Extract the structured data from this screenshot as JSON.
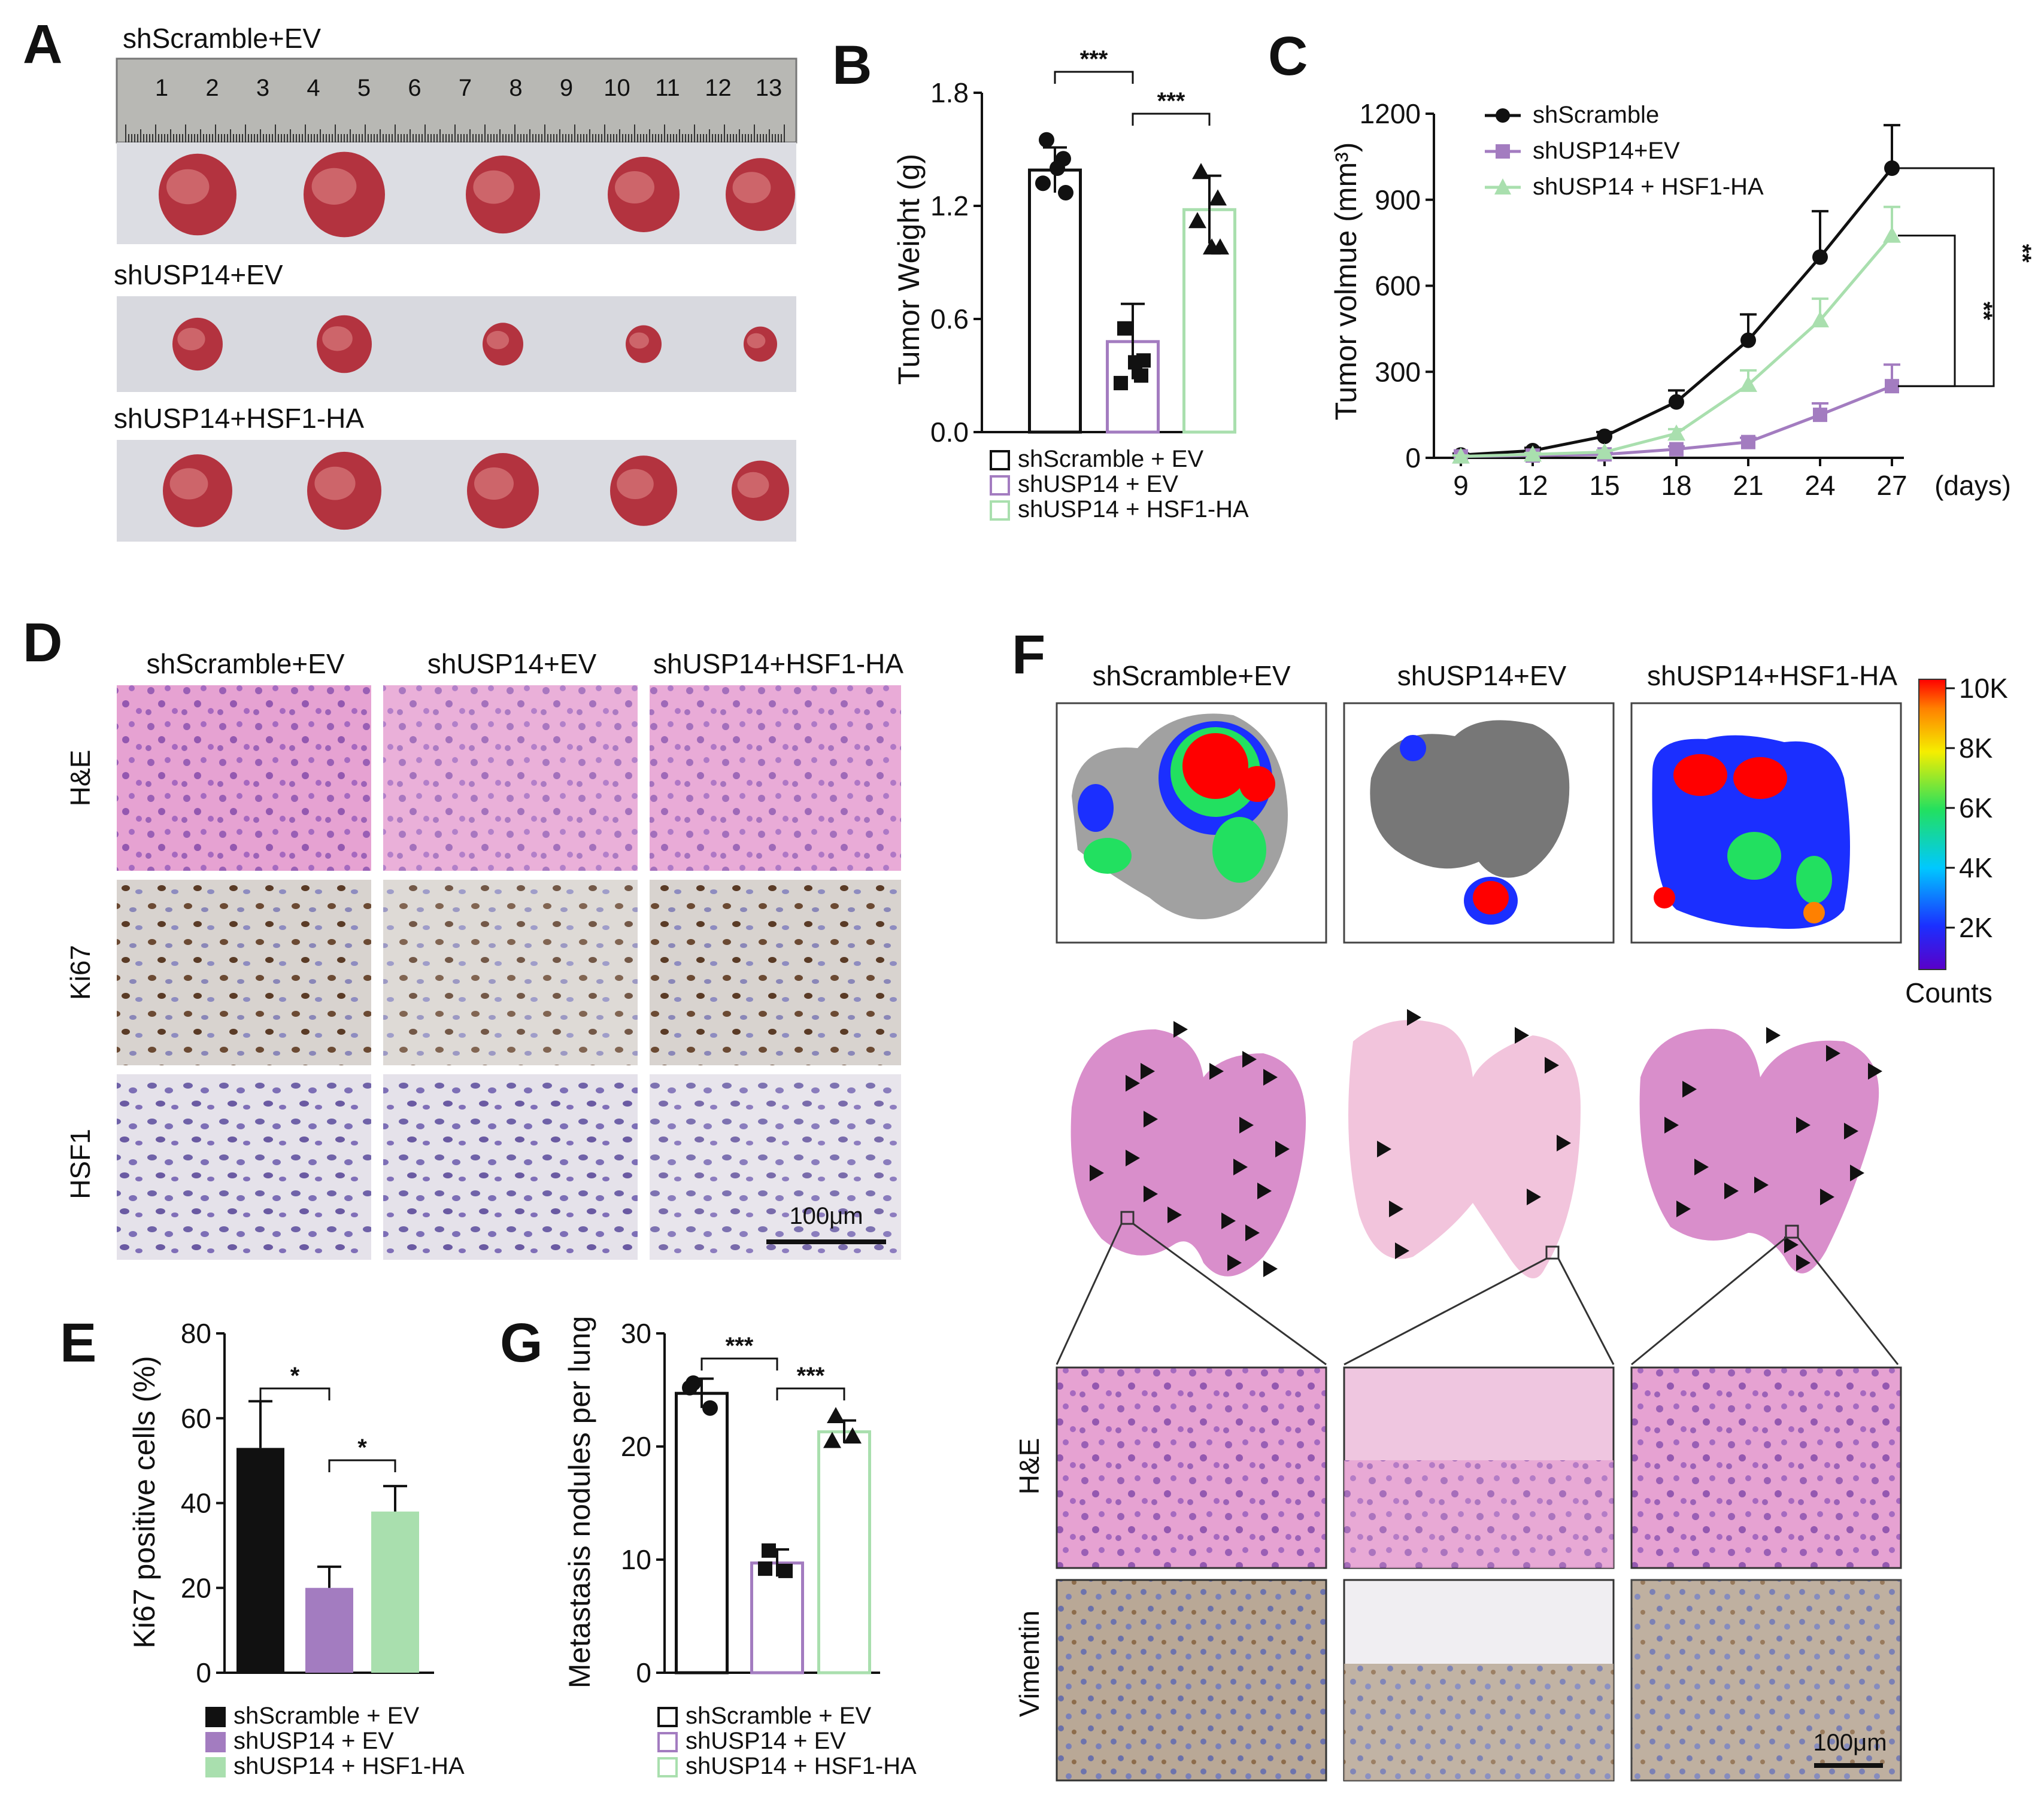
{
  "panels": {
    "A": {
      "letter": "A",
      "groups": [
        "shScramble+EV",
        "shUSP14+EV",
        "shUSP14+HSF1-HA"
      ],
      "ruler_numbers": [
        "1",
        "2",
        "3",
        "4",
        "5",
        "6",
        "7",
        "8",
        "9",
        "10",
        "11",
        "12",
        "13"
      ]
    },
    "D": {
      "letter": "D",
      "columns": [
        "shScramble+EV",
        "shUSP14+EV",
        "shUSP14+HSF1-HA"
      ],
      "rows": [
        "H&E",
        "Ki67",
        "HSF1"
      ],
      "scale_bar": "100μm"
    },
    "F": {
      "letter": "F",
      "columns": [
        "shScramble+EV",
        "shUSP14+EV",
        "shUSP14+HSF1-HA"
      ],
      "colorbar_ticks": [
        "10K",
        "8K",
        "6K",
        "4K",
        "2K"
      ],
      "colorbar_title": "Counts",
      "rows": [
        "H&E",
        "Vimentin"
      ],
      "scale_bar": "100μm"
    }
  },
  "colors": {
    "shScramble": "#111111",
    "shUSP14": "#a37cc0",
    "shUSP14_HSF1": "#a9dfae",
    "tissue_pink": "#d991c9",
    "ihc_brown": "#8a6a45"
  },
  "chart_data": [
    {
      "id": "B",
      "letter": "B",
      "type": "bar",
      "categories": [
        "shScramble + EV",
        "shUSP14 + EV",
        "shUSP14 + HSF1-HA"
      ],
      "values": [
        1.39,
        0.48,
        1.18
      ],
      "errors": [
        0.12,
        0.2,
        0.18
      ],
      "points": [
        [
          1.55,
          1.45,
          1.32,
          1.27,
          1.4
        ],
        [
          0.55,
          0.3,
          0.26,
          0.38,
          0.37
        ],
        [
          1.38,
          1.24,
          1.12,
          0.98,
          0.98
        ]
      ],
      "ylabel": "Tumor Weight (g)",
      "ylim": [
        0,
        1.8
      ],
      "yticks": [
        "0.0",
        "0.6",
        "1.2",
        "1.8"
      ],
      "filled": false,
      "significance": [
        "***",
        "***"
      ],
      "legend": [
        "shScramble + EV",
        "shUSP14 + EV",
        "shUSP14 + HSF1-HA"
      ]
    },
    {
      "id": "C",
      "letter": "C",
      "type": "line",
      "x": [
        9,
        12,
        15,
        18,
        21,
        24,
        27
      ],
      "series": [
        {
          "name": "shScramble",
          "values": [
            10,
            25,
            75,
            195,
            410,
            700,
            1010
          ],
          "errors": [
            5,
            10,
            15,
            40,
            90,
            160,
            150
          ]
        },
        {
          "name": "shUSP14+EV",
          "values": [
            5,
            8,
            12,
            30,
            55,
            150,
            250
          ],
          "errors": [
            3,
            4,
            5,
            10,
            15,
            40,
            75
          ]
        },
        {
          "name": "shUSP14 + HSF1-HA",
          "values": [
            5,
            12,
            20,
            85,
            255,
            480,
            775
          ],
          "errors": [
            3,
            5,
            6,
            15,
            50,
            75,
            100
          ]
        }
      ],
      "ylabel": "Tumor volmue (mm³)",
      "xunit": "(days)",
      "ylim": [
        0,
        1200
      ],
      "yticks": [
        "0",
        "300",
        "600",
        "900",
        "1200"
      ],
      "xticks": [
        "9",
        "12",
        "15",
        "18",
        "21",
        "24",
        "27"
      ],
      "significance": [
        "**",
        "**"
      ]
    },
    {
      "id": "E",
      "letter": "E",
      "type": "bar",
      "categories": [
        "shScramble + EV",
        "shUSP14 + EV",
        "shUSP14 + HSF1-HA"
      ],
      "values": [
        53,
        20,
        38
      ],
      "errors": [
        11,
        5,
        6
      ],
      "ylabel": "Ki67 positive cells (%)",
      "ylim": [
        0,
        80
      ],
      "yticks": [
        "0",
        "20",
        "40",
        "60",
        "80"
      ],
      "filled": true,
      "significance": [
        "*",
        "*"
      ],
      "legend": [
        "shScramble + EV",
        "shUSP14 + EV",
        "shUSP14 + HSF1-HA"
      ]
    },
    {
      "id": "G",
      "letter": "G",
      "type": "bar",
      "categories": [
        "shScramble + EV",
        "shUSP14 + EV",
        "shUSP14 + HSF1-HA"
      ],
      "values": [
        24.7,
        9.7,
        21.3
      ],
      "errors": [
        1.3,
        1.2,
        1.0
      ],
      "points": [
        [
          25.6,
          23.4,
          25.2
        ],
        [
          10.8,
          9.0,
          9.2
        ],
        [
          22.7,
          20.9,
          20.5
        ]
      ],
      "ylabel": "Metastasis nodules per lung",
      "ylim": [
        0,
        30
      ],
      "yticks": [
        "0",
        "10",
        "20",
        "30"
      ],
      "filled": false,
      "significance": [
        "***",
        "***"
      ],
      "legend": [
        "shScramble + EV",
        "shUSP14 + EV",
        "shUSP14 + HSF1-HA"
      ]
    }
  ]
}
